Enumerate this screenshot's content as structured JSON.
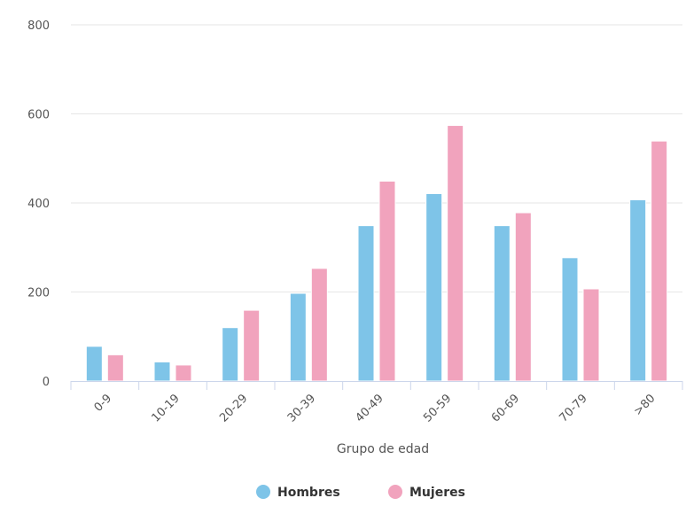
{
  "chart_data": {
    "type": "bar",
    "title": "",
    "xlabel": "Grupo de edad",
    "ylabel": "",
    "ylim": [
      0,
      800
    ],
    "yticks": [
      0,
      200,
      400,
      600,
      800
    ],
    "grid": true,
    "legend_position": "bottom-center",
    "categories": [
      "0-9",
      "10-19",
      "20-29",
      "30-39",
      "40-49",
      "50-59",
      "60-69",
      "70-79",
      ">80"
    ],
    "series": [
      {
        "name": "Hombres",
        "color": "#7ec4e8",
        "values": [
          78,
          43,
          120,
          197,
          349,
          421,
          349,
          277,
          407
        ]
      },
      {
        "name": "Mujeres",
        "color": "#f1a3bd",
        "values": [
          59,
          36,
          159,
          253,
          449,
          574,
          378,
          207,
          539
        ]
      }
    ]
  }
}
